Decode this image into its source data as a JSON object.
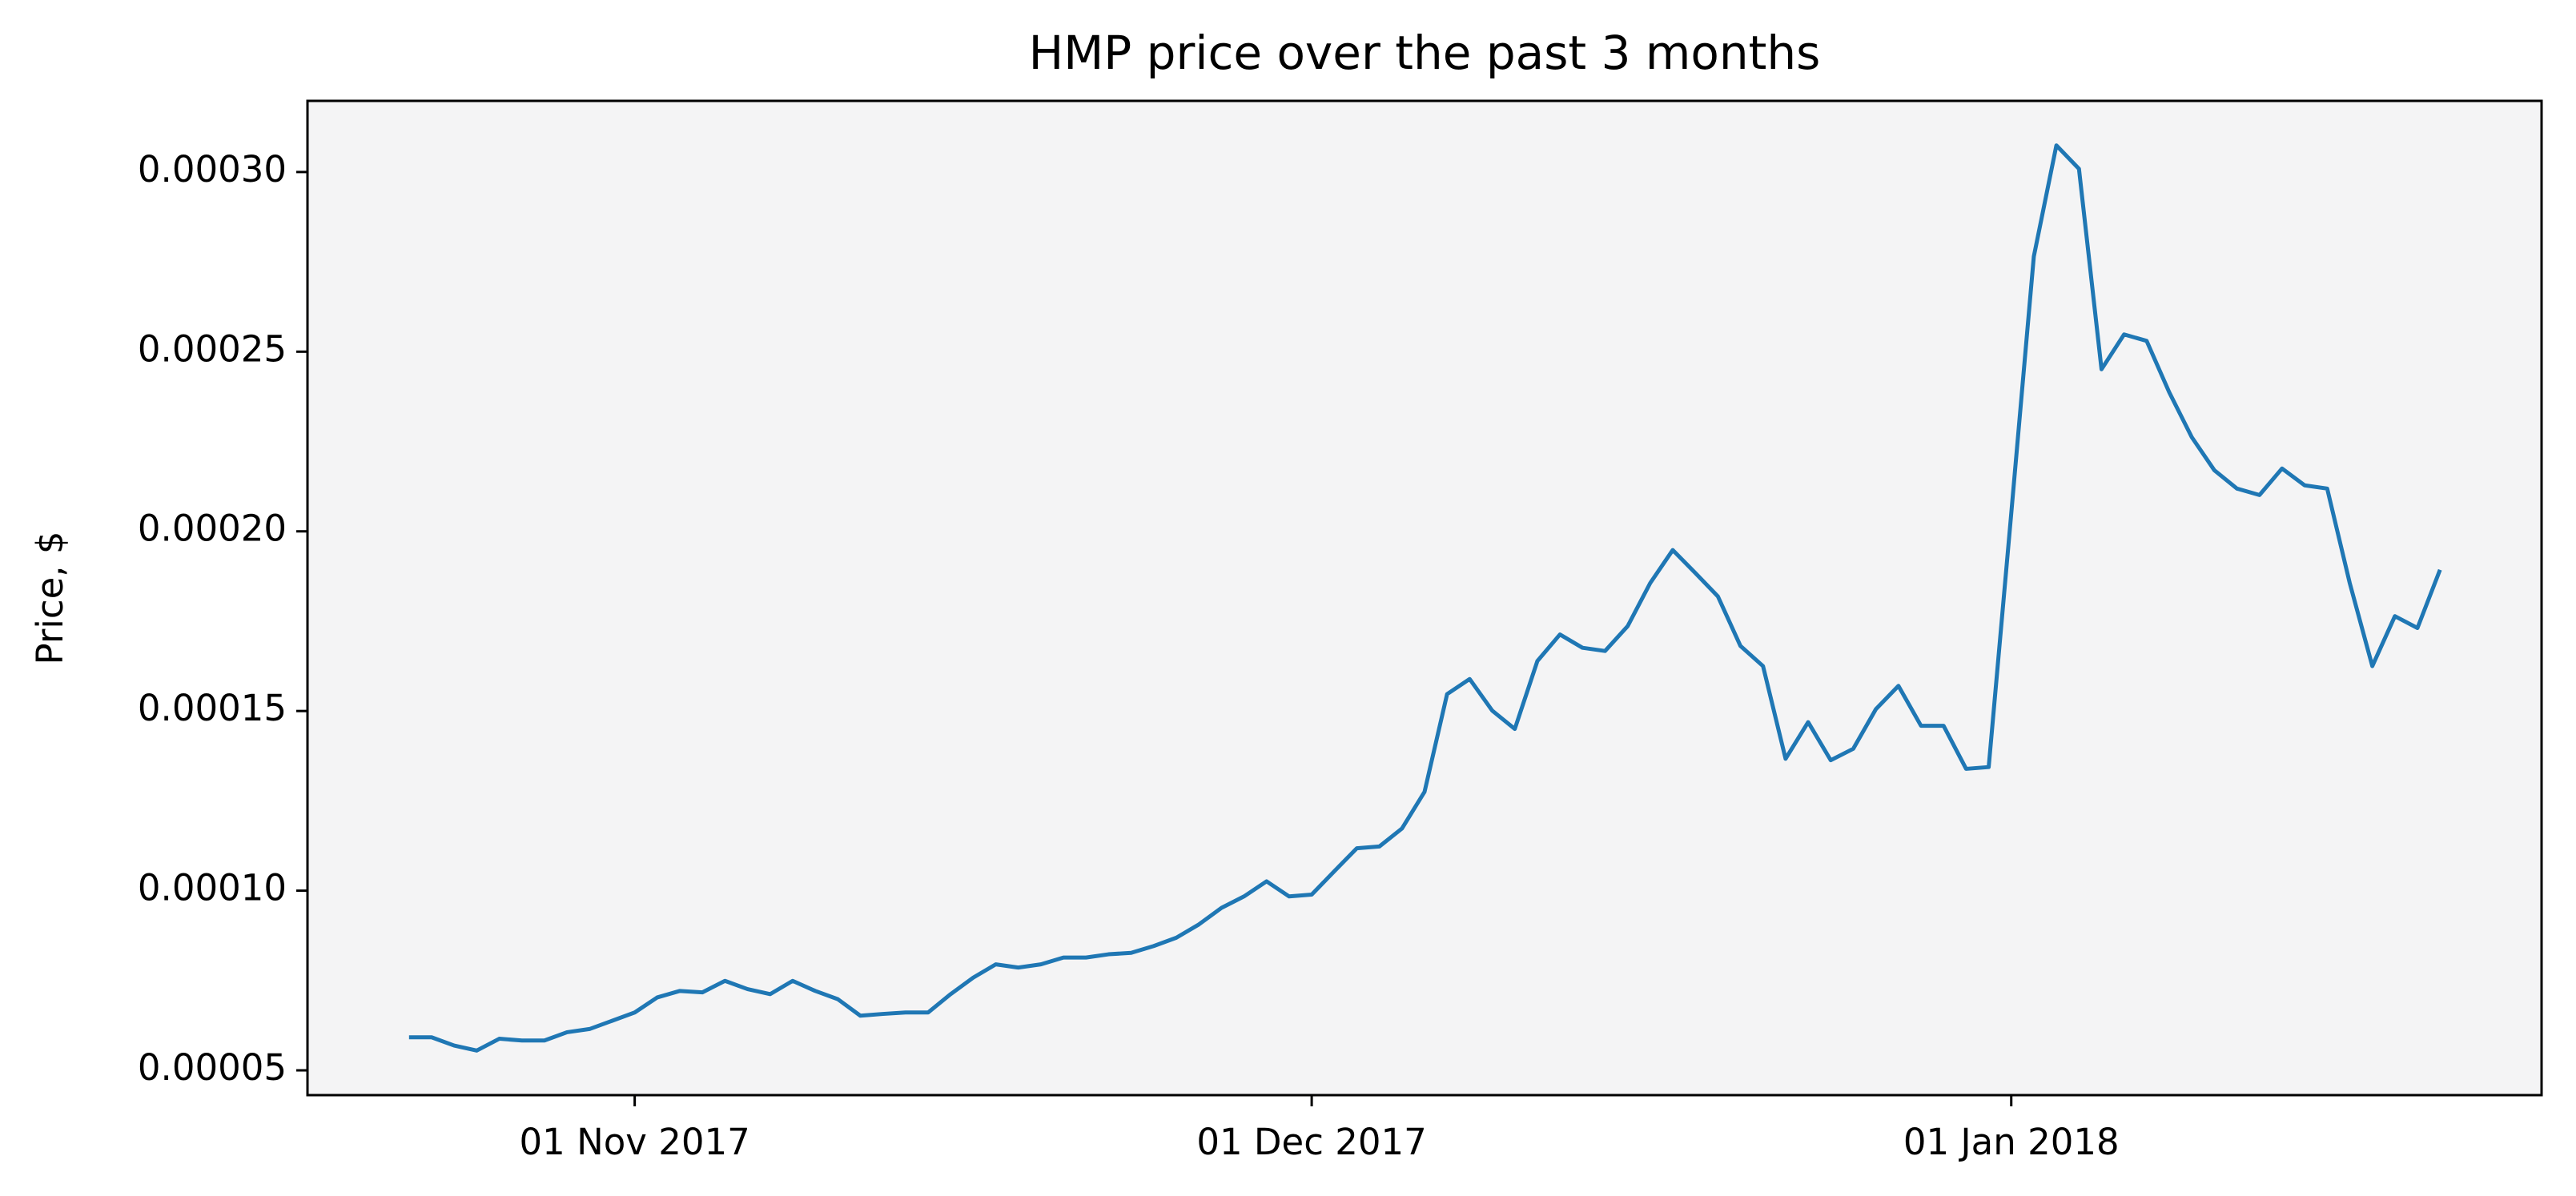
{
  "chart_data": {
    "type": "line",
    "title": "HMP price over the past 3 months",
    "ylabel": "Price, $",
    "color": "#1f77b4",
    "background": "#f4f4f5",
    "x": [
      "2017-10-22",
      "2017-10-23",
      "2017-10-24",
      "2017-10-25",
      "2017-10-26",
      "2017-10-27",
      "2017-10-28",
      "2017-10-29",
      "2017-10-30",
      "2017-10-31",
      "2017-11-01",
      "2017-11-02",
      "2017-11-03",
      "2017-11-04",
      "2017-11-05",
      "2017-11-06",
      "2017-11-07",
      "2017-11-08",
      "2017-11-09",
      "2017-11-10",
      "2017-11-11",
      "2017-11-12",
      "2017-11-13",
      "2017-11-14",
      "2017-11-15",
      "2017-11-16",
      "2017-11-17",
      "2017-11-18",
      "2017-11-19",
      "2017-11-20",
      "2017-11-21",
      "2017-11-22",
      "2017-11-23",
      "2017-11-24",
      "2017-11-25",
      "2017-11-26",
      "2017-11-27",
      "2017-11-28",
      "2017-11-29",
      "2017-11-30",
      "2017-12-01",
      "2017-12-02",
      "2017-12-03",
      "2017-12-04",
      "2017-12-05",
      "2017-12-06",
      "2017-12-07",
      "2017-12-08",
      "2017-12-09",
      "2017-12-10",
      "2017-12-11",
      "2017-12-12",
      "2017-12-13",
      "2017-12-14",
      "2017-12-15",
      "2017-12-16",
      "2017-12-17",
      "2017-12-18",
      "2017-12-19",
      "2017-12-20",
      "2017-12-21",
      "2017-12-22",
      "2017-12-23",
      "2017-12-24",
      "2017-12-25",
      "2017-12-26",
      "2017-12-27",
      "2017-12-28",
      "2017-12-29",
      "2017-12-30",
      "2017-12-31",
      "2018-01-01",
      "2018-01-02",
      "2018-01-03",
      "2018-01-04",
      "2018-01-05",
      "2018-01-06",
      "2018-01-07",
      "2018-01-08",
      "2018-01-09",
      "2018-01-10",
      "2018-01-11",
      "2018-01-12",
      "2018-01-13",
      "2018-01-14",
      "2018-01-15",
      "2018-01-16",
      "2018-01-17",
      "2018-01-18",
      "2018-01-19",
      "2018-01-20"
    ],
    "values": [
      5.92e-05,
      5.92e-05,
      5.69e-05,
      5.55e-05,
      5.88e-05,
      5.83e-05,
      5.83e-05,
      6.06e-05,
      6.15e-05,
      6.38e-05,
      6.61e-05,
      7.03e-05,
      7.21e-05,
      7.17e-05,
      7.49e-05,
      7.26e-05,
      7.12e-05,
      7.49e-05,
      7.21e-05,
      6.98e-05,
      6.52e-05,
      6.57e-05,
      6.61e-05,
      6.61e-05,
      7.12e-05,
      7.58e-05,
      7.95e-05,
      7.86e-05,
      7.95e-05,
      8.14e-05,
      8.14e-05,
      8.23e-05,
      8.27e-05,
      8.46e-05,
      8.69e-05,
      9.06e-05,
      9.52e-05,
      9.84e-05,
      0.0001026,
      9.84e-05,
      9.89e-05,
      0.0001054,
      0.0001118,
      0.0001123,
      0.0001173,
      0.0001275,
      0.0001547,
      0.0001589,
      0.0001501,
      0.000145,
      0.0001639,
      0.0001713,
      0.0001676,
      0.0001667,
      0.0001736,
      0.0001856,
      0.0001948,
      0.0001884,
      0.0001819,
      0.0001681,
      0.0001625,
      0.0001367,
      0.0001469,
      0.0001363,
      0.0001395,
      0.0001505,
      0.000157,
      0.0001459,
      0.0001459,
      0.0001339,
      0.0001344,
      0.000205,
      0.0002765,
      0.0003074,
      0.0003009,
      0.0002451,
      0.0002548,
      0.000253,
      0.0002387,
      0.0002262,
      0.000217,
      0.0002119,
      0.0002101,
      0.0002175,
      0.0002128,
      0.0002119,
      0.0001856,
      0.0001625,
      0.0001764,
      0.0001731,
      0.0001893
    ],
    "xlim": [
      "2017-10-17T12:00",
      "2018-01-24T12:00"
    ],
    "xticks": [
      {
        "value": "2017-11-01",
        "label": "01 Nov 2017"
      },
      {
        "value": "2017-12-01",
        "label": "01 Dec 2017"
      },
      {
        "value": "2018-01-01",
        "label": "01 Jan 2018"
      }
    ],
    "ylim": [
      4.31e-05,
      0.0003198
    ],
    "yticks": [
      5e-05,
      {
        "value": 0.0001,
        "label": "0.00010"
      },
      0.00015,
      {
        "value": 0.0002,
        "label": "0.00020"
      },
      0.00025,
      {
        "value": 0.0003,
        "label": "0.00030"
      }
    ]
  }
}
